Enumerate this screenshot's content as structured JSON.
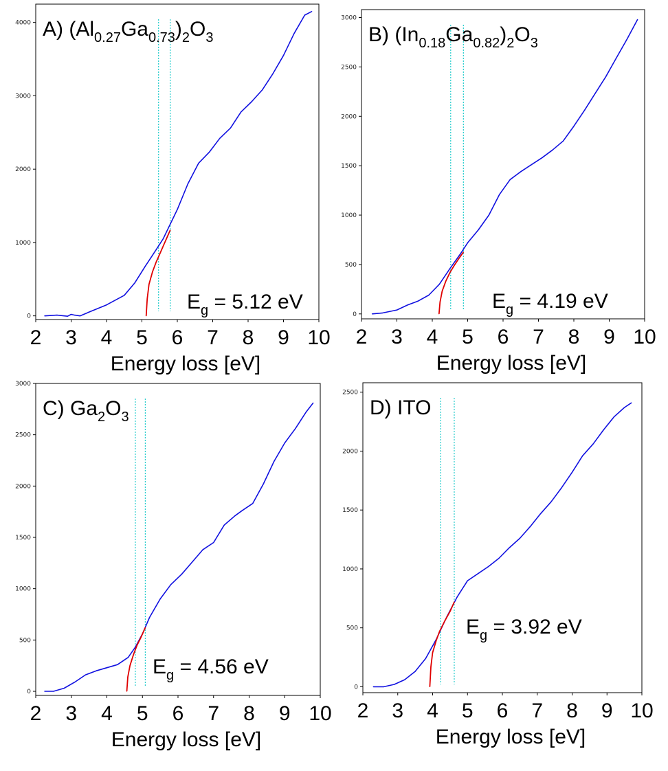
{
  "chart_data": [
    {
      "type": "line",
      "panel_label": "A)",
      "formula": {
        "parts": [
          [
            "(Al",
            ""
          ],
          [
            "0.27",
            "sub"
          ],
          [
            "Ga",
            ""
          ],
          [
            "0.73",
            "sub"
          ],
          [
            ")",
            ""
          ],
          [
            "2",
            "sub"
          ],
          [
            "O",
            ""
          ],
          [
            "3",
            "sub"
          ]
        ]
      },
      "xlabel": "Energy loss [eV]",
      "xlim": [
        2,
        10
      ],
      "ylim": [
        -50,
        4250
      ],
      "xticks": [
        2,
        3,
        4,
        5,
        6,
        7,
        8,
        9,
        10
      ],
      "yticks": [
        0,
        1000,
        2000,
        3000,
        4000
      ],
      "band_gap": {
        "symbol": "E",
        "subscript": "g",
        "value_text": " = 5.12 eV",
        "value": 5.12
      },
      "fit_window": [
        5.47,
        5.8
      ],
      "series": [
        {
          "color": "#1010e0",
          "x": [
            2.25,
            2.6,
            2.9,
            3.0,
            3.1,
            3.25,
            3.5,
            4.0,
            4.5,
            4.8,
            5.1,
            5.4,
            5.6,
            5.8,
            6.0,
            6.3,
            6.6,
            6.9,
            7.2,
            7.5,
            7.8,
            8.1,
            8.4,
            8.7,
            9.0,
            9.3,
            9.6,
            9.8
          ],
          "y": [
            0,
            10,
            -5,
            20,
            10,
            0,
            50,
            150,
            280,
            450,
            680,
            900,
            1050,
            1250,
            1450,
            1800,
            2080,
            2230,
            2420,
            2560,
            2780,
            2920,
            3080,
            3300,
            3550,
            3850,
            4100,
            4150
          ]
        },
        {
          "color": "#e00000",
          "x": [
            5.12,
            5.15,
            5.2,
            5.3,
            5.4,
            5.5,
            5.6,
            5.7,
            5.8
          ],
          "y": [
            0,
            230,
            430,
            600,
            730,
            840,
            950,
            1060,
            1170
          ]
        }
      ]
    },
    {
      "type": "line",
      "panel_label": "B)",
      "formula": {
        "parts": [
          [
            "(In",
            ""
          ],
          [
            "0.18",
            "sub"
          ],
          [
            "Ga",
            ""
          ],
          [
            "0.82",
            "sub"
          ],
          [
            ")",
            ""
          ],
          [
            "2",
            "sub"
          ],
          [
            "O",
            ""
          ],
          [
            "3",
            "sub"
          ]
        ]
      },
      "xlabel": "Energy loss [eV]",
      "xlim": [
        2,
        10
      ],
      "ylim": [
        -50,
        3080
      ],
      "xticks": [
        2,
        3,
        4,
        5,
        6,
        7,
        8,
        9,
        10
      ],
      "yticks": [
        0,
        500,
        1000,
        1500,
        2000,
        2500,
        3000
      ],
      "band_gap": {
        "symbol": "E",
        "subscript": "g",
        "value_text": " = 4.19 eV",
        "value": 4.19
      },
      "fit_window": [
        4.52,
        4.88
      ],
      "series": [
        {
          "color": "#1010e0",
          "x": [
            2.3,
            2.6,
            3.0,
            3.3,
            3.6,
            3.9,
            4.2,
            4.5,
            4.8,
            5.0,
            5.3,
            5.6,
            5.9,
            6.2,
            6.5,
            6.8,
            7.1,
            7.4,
            7.7,
            8.0,
            8.3,
            8.6,
            8.9,
            9.2,
            9.5,
            9.8
          ],
          "y": [
            0,
            10,
            40,
            90,
            130,
            190,
            300,
            460,
            610,
            720,
            850,
            1000,
            1210,
            1360,
            1440,
            1510,
            1580,
            1660,
            1750,
            1900,
            2060,
            2230,
            2400,
            2590,
            2780,
            2980
          ]
        },
        {
          "color": "#e00000",
          "x": [
            4.19,
            4.22,
            4.28,
            4.38,
            4.5,
            4.62,
            4.75,
            4.88
          ],
          "y": [
            0,
            120,
            230,
            330,
            420,
            490,
            560,
            625
          ]
        }
      ]
    },
    {
      "type": "line",
      "panel_label": "C)",
      "formula": {
        "parts": [
          [
            "Ga",
            ""
          ],
          [
            "2",
            "sub"
          ],
          [
            "O",
            ""
          ],
          [
            "3",
            "sub"
          ]
        ]
      },
      "xlabel": "Energy loss [eV]",
      "xlim": [
        2,
        10
      ],
      "ylim": [
        -40,
        3000
      ],
      "xticks": [
        2,
        3,
        4,
        5,
        6,
        7,
        8,
        9,
        10
      ],
      "yticks": [
        0,
        500,
        1000,
        1500,
        2000,
        2500,
        3000
      ],
      "band_gap": {
        "symbol": "E",
        "subscript": "g",
        "value_text": " = 4.56 eV",
        "value": 4.56
      },
      "fit_window": [
        4.8,
        5.08
      ],
      "series": [
        {
          "color": "#1010e0",
          "x": [
            2.25,
            2.5,
            2.8,
            3.1,
            3.4,
            3.7,
            4.0,
            4.3,
            4.6,
            4.8,
            5.0,
            5.2,
            5.5,
            5.8,
            6.1,
            6.4,
            6.7,
            7.0,
            7.3,
            7.6,
            7.8,
            8.1,
            8.4,
            8.7,
            9.0,
            9.3,
            9.6,
            9.8
          ],
          "y": [
            0,
            0,
            30,
            90,
            160,
            200,
            230,
            260,
            330,
            430,
            560,
            720,
            900,
            1040,
            1140,
            1260,
            1380,
            1450,
            1620,
            1710,
            1760,
            1830,
            2020,
            2240,
            2420,
            2560,
            2720,
            2810
          ]
        },
        {
          "color": "#e00000",
          "x": [
            4.56,
            4.59,
            4.65,
            4.75,
            4.85,
            4.95,
            5.08
          ],
          "y": [
            0,
            140,
            250,
            360,
            450,
            520,
            620
          ]
        }
      ]
    },
    {
      "type": "line",
      "panel_label": "D) ITO",
      "formula": {
        "parts": []
      },
      "xlabel": "Energy loss [eV]",
      "xlim": [
        2,
        10
      ],
      "ylim": [
        -50,
        2580
      ],
      "xticks": [
        2,
        3,
        4,
        5,
        6,
        7,
        8,
        9,
        10
      ],
      "yticks": [
        0,
        500,
        1000,
        1500,
        2000,
        2500
      ],
      "band_gap": {
        "symbol": "E",
        "subscript": "g",
        "value_text": " = 3.92 eV",
        "value": 3.92
      },
      "fit_window": [
        4.23,
        4.62
      ],
      "series": [
        {
          "color": "#1010e0",
          "x": [
            2.3,
            2.6,
            2.9,
            3.2,
            3.5,
            3.8,
            4.1,
            4.4,
            4.7,
            5.0,
            5.3,
            5.6,
            5.9,
            6.2,
            6.5,
            6.8,
            7.1,
            7.4,
            7.7,
            8.0,
            8.3,
            8.6,
            8.9,
            9.2,
            9.5,
            9.7
          ],
          "y": [
            0,
            0,
            20,
            60,
            130,
            240,
            400,
            590,
            760,
            900,
            960,
            1020,
            1090,
            1180,
            1260,
            1360,
            1470,
            1570,
            1690,
            1820,
            1960,
            2060,
            2180,
            2290,
            2370,
            2410
          ]
        },
        {
          "color": "#e00000",
          "x": [
            3.92,
            3.95,
            4.0,
            4.1,
            4.2,
            4.35,
            4.5,
            4.62
          ],
          "y": [
            0,
            170,
            290,
            390,
            470,
            560,
            640,
            720
          ]
        }
      ]
    }
  ]
}
